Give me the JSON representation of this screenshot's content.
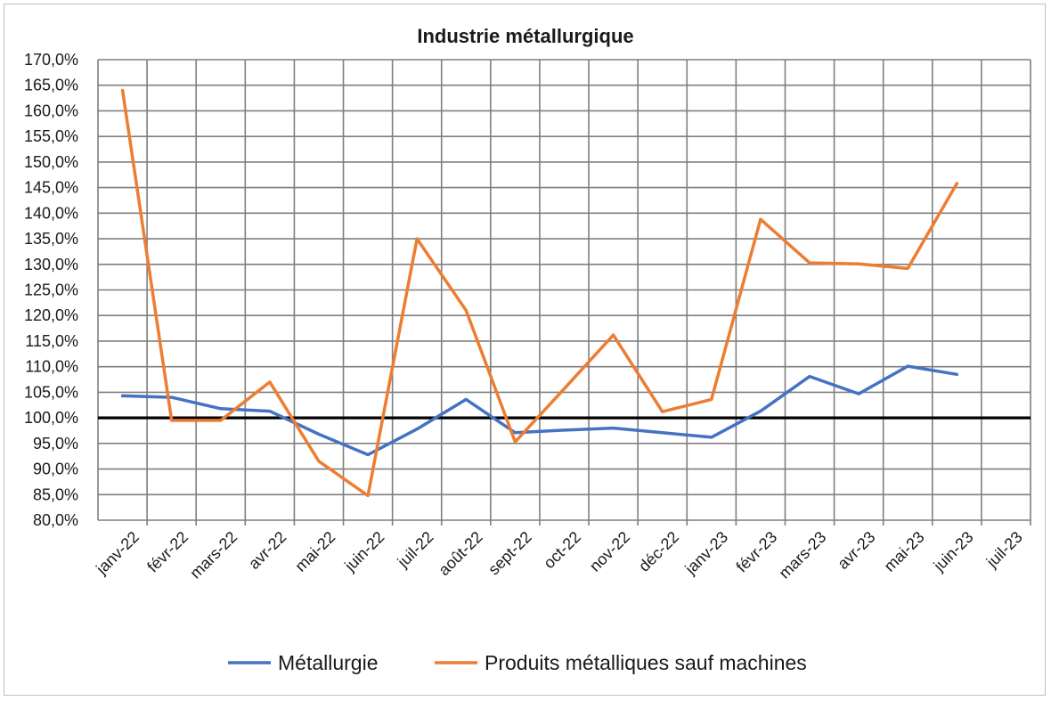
{
  "chart_data": {
    "type": "line",
    "title": "Industrie métallurgique",
    "xlabel": "",
    "ylabel": "",
    "categories": [
      "janv-22",
      "févr-22",
      "mars-22",
      "avr-22",
      "mai-22",
      "juin-22",
      "juil-22",
      "août-22",
      "sept-22",
      "oct-22",
      "nov-22",
      "déc-22",
      "janv-23",
      "févr-23",
      "mars-23",
      "avr-23",
      "mai-23",
      "juin-23",
      "juil-23"
    ],
    "ylim": [
      80,
      170
    ],
    "ytick_step": 5,
    "ytick_labels": [
      "80,0%",
      "85,0%",
      "90,0%",
      "95,0%",
      "100,0%",
      "105,0%",
      "110,0%",
      "115,0%",
      "120,0%",
      "125,0%",
      "130,0%",
      "135,0%",
      "140,0%",
      "145,0%",
      "150,0%",
      "155,0%",
      "160,0%",
      "165,0%",
      "170,0%"
    ],
    "reference_line": 100,
    "grid": true,
    "legend_position": "bottom",
    "series": [
      {
        "name": "Métallurgie",
        "color": "#4472c4",
        "values": [
          104.3,
          104.0,
          101.8,
          101.3,
          96.8,
          92.8,
          97.8,
          103.6,
          97.1,
          97.6,
          98.0,
          97.1,
          96.2,
          101.3,
          108.1,
          104.7,
          110.1,
          108.5,
          null
        ]
      },
      {
        "name": "Produits métalliques sauf machines",
        "color": "#ed7d31",
        "values": [
          164.0,
          99.5,
          99.5,
          107.0,
          91.5,
          84.8,
          135.0,
          121.0,
          95.3,
          105.7,
          116.2,
          101.2,
          103.6,
          138.8,
          130.3,
          130.1,
          129.2,
          145.8,
          null
        ]
      }
    ]
  },
  "legend": {
    "items": [
      {
        "label": "Métallurgie",
        "color": "#4472c4"
      },
      {
        "label": "Produits métalliques sauf machines",
        "color": "#ed7d31"
      }
    ]
  }
}
